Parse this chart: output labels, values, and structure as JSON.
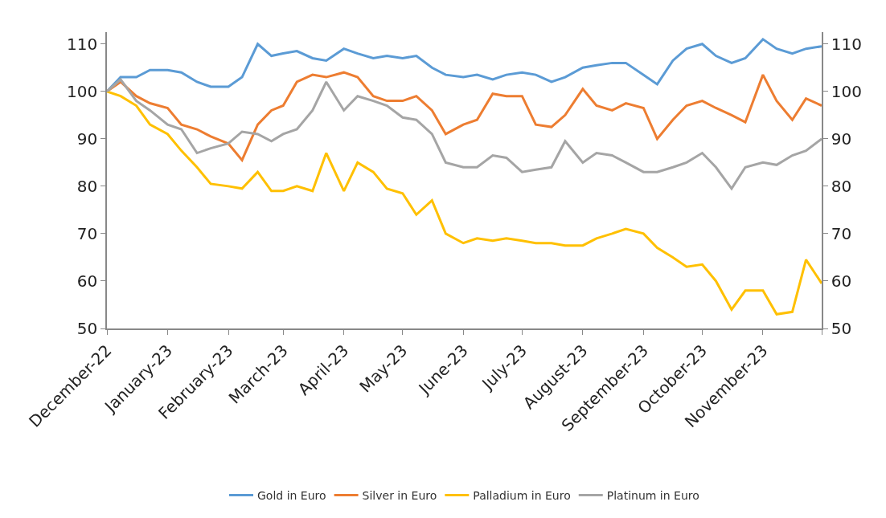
{
  "chart_data": {
    "type": "line",
    "x": [
      "2022-12-01",
      "2022-12-08",
      "2022-12-16",
      "2022-12-23",
      "2023-01-01",
      "2023-01-08",
      "2023-01-16",
      "2023-01-23",
      "2023-02-01",
      "2023-02-08",
      "2023-02-16",
      "2023-02-23",
      "2023-03-01",
      "2023-03-08",
      "2023-03-16",
      "2023-03-23",
      "2023-04-01",
      "2023-04-08",
      "2023-04-16",
      "2023-04-23",
      "2023-05-01",
      "2023-05-08",
      "2023-05-16",
      "2023-05-23",
      "2023-06-01",
      "2023-06-08",
      "2023-06-16",
      "2023-06-23",
      "2023-07-01",
      "2023-07-08",
      "2023-07-16",
      "2023-07-23",
      "2023-08-01",
      "2023-08-08",
      "2023-08-16",
      "2023-08-23",
      "2023-09-01",
      "2023-09-08",
      "2023-09-16",
      "2023-09-23",
      "2023-10-01",
      "2023-10-08",
      "2023-10-16",
      "2023-10-23",
      "2023-11-01",
      "2023-11-08",
      "2023-11-16",
      "2023-11-23",
      "2023-12-01"
    ],
    "series": [
      {
        "name": "Gold in Euro",
        "color": "#5b9bd5",
        "values": [
          100,
          103,
          103,
          104.5,
          104.5,
          104,
          102,
          101,
          101,
          103,
          110,
          107.5,
          108,
          108.5,
          107,
          106.5,
          109,
          108,
          107,
          107.5,
          107,
          107.5,
          105,
          103.5,
          103,
          103.5,
          102.5,
          103.5,
          104,
          103.5,
          102,
          103,
          105,
          105.5,
          106,
          106,
          103.5,
          101.5,
          106.5,
          109,
          110,
          107.5,
          106,
          107,
          111,
          109,
          108,
          109,
          109.5
        ]
      },
      {
        "name": "Silver in Euro",
        "color": "#ed7d31",
        "values": [
          100,
          102,
          99,
          97.5,
          96.5,
          93,
          92,
          90.5,
          89,
          85.5,
          93,
          96,
          97,
          102,
          103.5,
          103,
          104,
          103,
          99,
          98,
          98,
          99,
          96,
          91,
          93,
          94,
          99.5,
          99,
          99,
          93,
          92.5,
          95,
          100.5,
          97,
          96,
          97.5,
          96.5,
          90,
          94,
          97,
          98,
          96.5,
          95,
          93.5,
          103.5,
          98,
          94,
          98.5,
          97
        ]
      },
      {
        "name": "Palladium in Euro",
        "color": "#ffc000",
        "values": [
          100,
          99,
          97,
          93,
          91,
          87.5,
          84,
          80.5,
          80,
          79.5,
          83,
          79,
          79,
          80,
          79,
          87,
          79,
          85,
          83,
          79.5,
          78.5,
          74,
          77,
          70,
          68,
          69,
          68.5,
          69,
          68.5,
          68,
          68,
          67.5,
          67.5,
          69,
          70,
          71,
          70,
          67,
          65,
          63,
          63.5,
          60,
          54,
          58,
          58,
          53,
          53.5,
          64.5,
          59.5
        ]
      },
      {
        "name": "Platinum in Euro",
        "color": "#a5a5a5",
        "values": [
          100,
          102.5,
          98,
          96,
          93,
          92,
          87,
          88,
          89,
          91.5,
          91,
          89.5,
          91,
          92,
          96,
          102,
          96,
          99,
          98,
          97,
          94.5,
          94,
          91,
          85,
          84,
          84,
          86.5,
          86,
          83,
          83.5,
          84,
          89.5,
          85,
          87,
          86.5,
          85,
          83,
          83,
          84,
          85,
          87,
          84,
          79.5,
          84,
          85,
          84.5,
          86.5,
          87.5,
          90
        ]
      }
    ],
    "xlim": [
      "2022-12-01",
      "2023-12-01"
    ],
    "xticks": [
      {
        "value": "2022-12-01",
        "label": "December-22"
      },
      {
        "value": "2023-01-01",
        "label": "January-23"
      },
      {
        "value": "2023-02-01",
        "label": "February-23"
      },
      {
        "value": "2023-03-01",
        "label": "March-23"
      },
      {
        "value": "2023-04-01",
        "label": "April-23"
      },
      {
        "value": "2023-05-01",
        "label": "May-23"
      },
      {
        "value": "2023-06-01",
        "label": "June-23"
      },
      {
        "value": "2023-07-01",
        "label": "July-23"
      },
      {
        "value": "2023-08-01",
        "label": "August-23"
      },
      {
        "value": "2023-09-01",
        "label": "September-23"
      },
      {
        "value": "2023-10-01",
        "label": "October-23"
      },
      {
        "value": "2023-11-01",
        "label": "November-23"
      },
      {
        "value": "2023-12-01",
        "label": null
      }
    ],
    "ylim": [
      50,
      112.5
    ],
    "yticks": [
      50,
      60,
      70,
      80,
      90,
      100,
      110
    ],
    "y2lim": [
      50,
      112.5
    ],
    "y2ticks": [
      50,
      60,
      70,
      80,
      90,
      100,
      110
    ],
    "legend": "bottom",
    "marker": "none",
    "line_style": "solid"
  }
}
